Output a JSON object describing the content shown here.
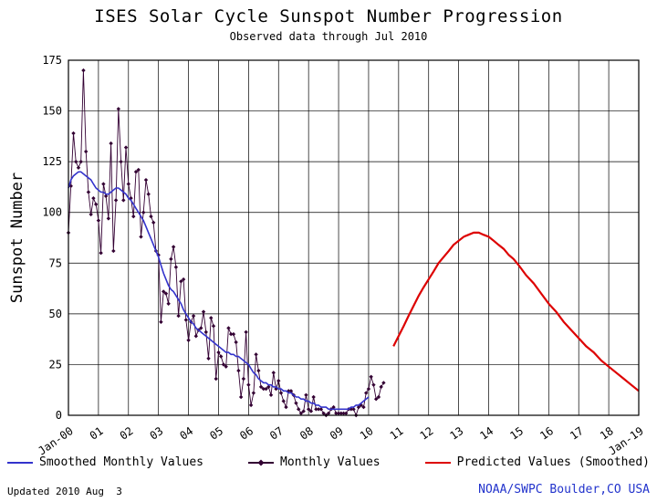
{
  "page": {
    "title": "ISES Solar Cycle Sunspot Number Progression",
    "subtitle": "Observed data through Jul 2010",
    "footer_updated": "Updated 2010 Aug  3",
    "footer_credit": "NOAA/SWPC Boulder,CO USA"
  },
  "colors": {
    "smoothed_line": "#3333cc",
    "monthly_line": "#330033",
    "predicted_line": "#dd0000",
    "credit_text": "#2233cc",
    "grid": "#000000",
    "background": "#ffffff"
  },
  "legend": [
    {
      "label": "Smoothed Monthly Values",
      "color": "#3333cc",
      "style": "line"
    },
    {
      "label": "Monthly Values",
      "color": "#330033",
      "style": "line-dot"
    },
    {
      "label": "Predicted Values (Smoothed)",
      "color": "#dd0000",
      "style": "line"
    }
  ],
  "chart_data": {
    "type": "line",
    "title": "ISES Solar Cycle Sunspot Number Progression",
    "subtitle": "Observed data through Jul 2010",
    "xlabel": "",
    "ylabel": "Sunspot Number",
    "ylim": [
      0,
      175
    ],
    "yticks": [
      0,
      25,
      50,
      75,
      100,
      125,
      150,
      175
    ],
    "xlim": [
      2000,
      2019
    ],
    "xtick_labels": [
      "Jan-00",
      "01",
      "02",
      "03",
      "04",
      "05",
      "06",
      "07",
      "08",
      "09",
      "10",
      "11",
      "12",
      "13",
      "14",
      "15",
      "16",
      "17",
      "18",
      "Jan-19"
    ],
    "grid": true,
    "legend_position": "bottom",
    "series": [
      {
        "id": "monthly",
        "name": "Monthly Values",
        "color": "#330033",
        "width": 0.9,
        "marker": "diamond",
        "start": 2000.0,
        "cadence": "monthly",
        "values": [
          90,
          113,
          139,
          125,
          122,
          125,
          170,
          130,
          110,
          99,
          107,
          104,
          96,
          80,
          114,
          108,
          97,
          134,
          81,
          106,
          151,
          125,
          106,
          132,
          114,
          107,
          98,
          120,
          121,
          88,
          100,
          116,
          109,
          98,
          95,
          81,
          79,
          46,
          61,
          60,
          55,
          77,
          83,
          73,
          49,
          66,
          67,
          47,
          37,
          46,
          49,
          39,
          42,
          43,
          51,
          41,
          28,
          48,
          44,
          18,
          31,
          29,
          25,
          24,
          43,
          40,
          40,
          36,
          22,
          9,
          18,
          41,
          15,
          5,
          11,
          30,
          22,
          14,
          13,
          13,
          14,
          10,
          21,
          13,
          17,
          11,
          7,
          4,
          12,
          12,
          10,
          6,
          3,
          1,
          2,
          10,
          3,
          2,
          9,
          3,
          3,
          3,
          1,
          0,
          1,
          3,
          4,
          1,
          1,
          1,
          1,
          1,
          3,
          3,
          3,
          0,
          4,
          5,
          4,
          11,
          13,
          19,
          15,
          8,
          9,
          14,
          16
        ]
      },
      {
        "id": "smoothed",
        "name": "Smoothed Monthly Values",
        "color": "#3333cc",
        "width": 1.6,
        "marker": null,
        "start": 2000.0,
        "cadence": "monthly",
        "values": [
          112,
          116,
          118,
          119,
          120,
          120,
          119,
          118,
          117,
          116,
          114,
          112,
          111,
          110,
          110,
          109,
          109,
          110,
          111,
          112,
          112,
          111,
          110,
          109,
          107,
          106,
          104,
          102,
          100,
          98,
          96,
          93,
          90,
          87,
          84,
          81,
          78,
          74,
          70,
          67,
          64,
          62,
          61,
          59,
          57,
          55,
          52,
          50,
          48,
          46,
          45,
          43,
          42,
          41,
          40,
          39,
          38,
          37,
          36,
          35,
          34,
          33,
          32,
          31,
          31,
          30,
          30,
          29,
          29,
          28,
          27,
          26,
          25,
          23,
          21,
          20,
          18,
          17,
          16,
          16,
          15,
          15,
          14,
          14,
          13,
          13,
          12,
          12,
          11,
          11,
          10,
          9,
          9,
          8,
          8,
          7,
          7,
          6,
          6,
          5,
          5,
          4,
          4,
          4,
          3,
          3,
          3,
          3,
          3,
          3,
          3,
          3,
          3,
          4,
          4,
          5,
          5,
          6,
          7,
          8,
          9
        ]
      },
      {
        "id": "predicted",
        "name": "Predicted Values (Smoothed)",
        "color": "#dd0000",
        "width": 2.2,
        "marker": null,
        "x": [
          2010.83,
          2011.0,
          2011.17,
          2011.33,
          2011.5,
          2011.67,
          2011.83,
          2012.0,
          2012.17,
          2012.33,
          2012.5,
          2012.67,
          2012.83,
          2013.0,
          2013.17,
          2013.33,
          2013.5,
          2013.67,
          2013.83,
          2014.0,
          2014.17,
          2014.33,
          2014.5,
          2014.67,
          2014.83,
          2015.0,
          2015.25,
          2015.5,
          2015.75,
          2016.0,
          2016.25,
          2016.5,
          2016.75,
          2017.0,
          2017.25,
          2017.5,
          2017.75,
          2018.0,
          2018.25,
          2018.5,
          2018.75,
          2019.0
        ],
        "values": [
          34,
          39,
          44,
          49,
          54,
          59,
          63,
          67,
          71,
          75,
          78,
          81,
          84,
          86,
          88,
          89,
          90,
          90,
          89,
          88,
          86,
          84,
          82,
          79,
          77,
          74,
          69,
          65,
          60,
          55,
          51,
          46,
          42,
          38,
          34,
          31,
          27,
          24,
          21,
          18,
          15,
          12
        ]
      }
    ]
  }
}
